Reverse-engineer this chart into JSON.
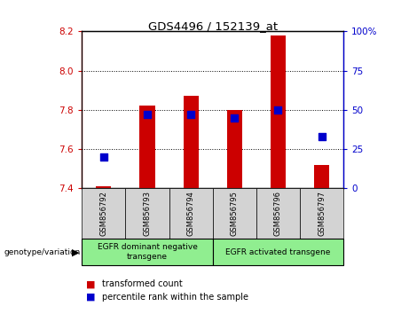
{
  "title": "GDS4496 / 152139_at",
  "samples": [
    "GSM856792",
    "GSM856793",
    "GSM856794",
    "GSM856795",
    "GSM856796",
    "GSM856797"
  ],
  "transformed_count": [
    7.41,
    7.82,
    7.87,
    7.8,
    8.18,
    7.52
  ],
  "percentile_rank": [
    20,
    47,
    47,
    45,
    50,
    33
  ],
  "ylim_left": [
    7.4,
    8.2
  ],
  "ylim_right": [
    0,
    100
  ],
  "bar_base": 7.4,
  "bar_color": "#cc0000",
  "dot_color": "#0000cc",
  "group_labels": [
    "EGFR dominant negative\ntransgene",
    "EGFR activated transgene"
  ],
  "group_colors": [
    "#90ee90",
    "#90ee90"
  ],
  "grid_yticks_left": [
    7.4,
    7.6,
    7.8,
    8.0,
    8.2
  ],
  "grid_yticks_right": [
    0,
    25,
    50,
    75,
    100
  ],
  "legend_labels": [
    "transformed count",
    "percentile rank within the sample"
  ],
  "legend_colors": [
    "#cc0000",
    "#0000cc"
  ],
  "left_axis_color": "#cc0000",
  "right_axis_color": "#0000cc",
  "bar_width": 0.35,
  "dot_size": 30,
  "label_area_color": "#d3d3d3"
}
